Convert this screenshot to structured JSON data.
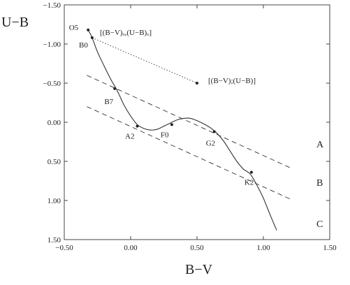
{
  "chart_data": {
    "type": "line",
    "title": "",
    "xlabel": "B−V",
    "ylabel": "U−B",
    "xlim": [
      -0.5,
      1.5
    ],
    "ylim": [
      -1.5,
      1.5
    ],
    "y_inverted": true,
    "grid": false,
    "xticks": [
      "−0.50",
      "0.00",
      "0.50",
      "1.00",
      "1.50"
    ],
    "xtick_values": [
      -0.5,
      0.0,
      0.5,
      1.0,
      1.5
    ],
    "yticks": [
      "−1.50",
      "−1.00",
      "−0.50",
      "0.00",
      "0.50",
      "1.00",
      "1.50"
    ],
    "ytick_values": [
      -1.5,
      -1.0,
      -0.5,
      0.0,
      0.5,
      1.0,
      1.5
    ],
    "main_sequence": {
      "x": [
        -0.32,
        -0.29,
        -0.25,
        -0.2,
        -0.15,
        -0.1,
        -0.05,
        0.0,
        0.05,
        0.1,
        0.15,
        0.2,
        0.25,
        0.3,
        0.35,
        0.4,
        0.45,
        0.5,
        0.55,
        0.6,
        0.65,
        0.7,
        0.75,
        0.8,
        0.85,
        0.9,
        0.95,
        1.0,
        1.05,
        1.1
      ],
      "y": [
        -1.18,
        -1.08,
        -0.9,
        -0.72,
        -0.55,
        -0.4,
        -0.22,
        -0.08,
        0.03,
        0.08,
        0.1,
        0.09,
        0.05,
        0.01,
        -0.03,
        -0.05,
        -0.05,
        -0.02,
        0.02,
        0.07,
        0.14,
        0.24,
        0.37,
        0.5,
        0.6,
        0.66,
        0.8,
        0.97,
        1.18,
        1.38
      ]
    },
    "points": [
      {
        "label": "O5",
        "x": -0.32,
        "y": -1.18
      },
      {
        "label": "B0",
        "x": -0.29,
        "y": -1.08
      },
      {
        "label": "B7",
        "x": -0.12,
        "y": -0.43
      },
      {
        "label": "A2",
        "x": 0.05,
        "y": 0.05
      },
      {
        "label": "F0",
        "x": 0.31,
        "y": 0.03
      },
      {
        "label": "G2",
        "x": 0.63,
        "y": 0.12
      },
      {
        "label": "K2",
        "x": 0.91,
        "y": 0.64
      },
      {
        "label": "",
        "x": 0.5,
        "y": -0.5
      }
    ],
    "reddening_lines": [
      {
        "name": "A",
        "x": [
          -0.33,
          1.2
        ],
        "y": [
          -0.6,
          0.58
        ]
      },
      {
        "name": "B",
        "x": [
          -0.33,
          1.2
        ],
        "y": [
          -0.2,
          0.98
        ]
      },
      {
        "name": "C",
        "x": [],
        "y": []
      }
    ],
    "reddening_vector": {
      "x": [
        -0.29,
        0.5
      ],
      "y": [
        -1.08,
        -0.5
      ]
    },
    "annotations": {
      "intrinsic": "[(B−V)ₒ,(U−B)ₒ]",
      "observed": "[(B−V);(U−B)]"
    },
    "region_labels": [
      "A",
      "B",
      "C"
    ]
  }
}
